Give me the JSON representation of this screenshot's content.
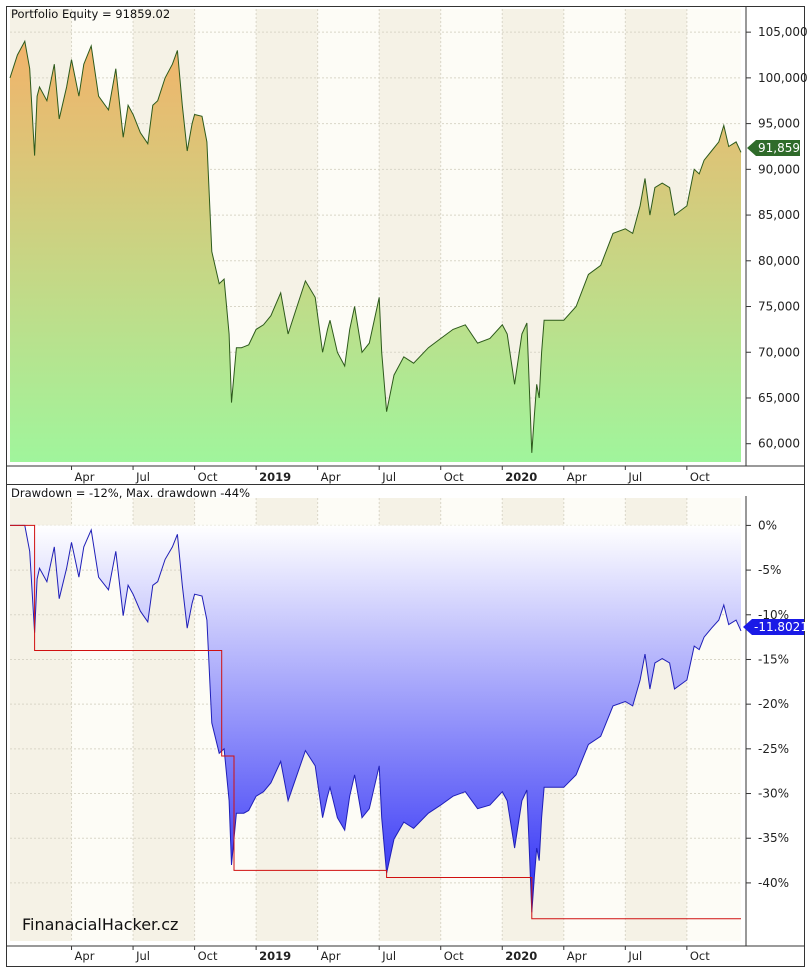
{
  "colors": {
    "equity_line": "#2d5a1b",
    "equity_fill_top": "#f2b36a",
    "equity_fill_bottom": "#a0f59c",
    "drawdown_line": "#1f1fb8",
    "drawdown_fill_top": "#ffffff",
    "drawdown_fill_bottom": "#2929f5",
    "max_drawdown_line": "#d01010",
    "equity_badge": "#2f6b2a",
    "drawdown_badge": "#1a1ae6"
  },
  "watermark": "FinanacialHacker.cz",
  "chart_data": [
    {
      "type": "area",
      "title": "Portfolio Equity = 91859.02",
      "badge": "91,859",
      "ylim": [
        58000,
        106000
      ],
      "y_ticks": [
        60000,
        65000,
        70000,
        75000,
        80000,
        85000,
        90000,
        95000,
        100000,
        105000
      ],
      "y_tick_labels": [
        "60,000",
        "65,000",
        "70,000",
        "75,000",
        "80,000",
        "85,000",
        "90,000",
        "95,000",
        "100,000",
        "105,000"
      ],
      "x_range": [
        2018.0,
        2020.97
      ],
      "x_ticks": [
        {
          "x": 2018.25,
          "label": "Apr",
          "bold": false
        },
        {
          "x": 2018.5,
          "label": "Jul",
          "bold": false
        },
        {
          "x": 2018.75,
          "label": "Oct",
          "bold": false
        },
        {
          "x": 2019.0,
          "label": "2019",
          "bold": true
        },
        {
          "x": 2019.25,
          "label": "Apr",
          "bold": false
        },
        {
          "x": 2019.5,
          "label": "Jul",
          "bold": false
        },
        {
          "x": 2019.75,
          "label": "Oct",
          "bold": false
        },
        {
          "x": 2020.0,
          "label": "2020",
          "bold": true
        },
        {
          "x": 2020.25,
          "label": "Apr",
          "bold": false
        },
        {
          "x": 2020.5,
          "label": "Jul",
          "bold": false
        },
        {
          "x": 2020.75,
          "label": "Oct",
          "bold": false
        }
      ],
      "series": [
        {
          "x": [
            2018.0,
            2018.03,
            2018.06,
            2018.08,
            2018.1,
            2018.11,
            2018.12,
            2018.15,
            2018.18,
            2018.2,
            2018.23,
            2018.25,
            2018.28,
            2018.3,
            2018.33,
            2018.36,
            2018.4,
            2018.43,
            2018.46,
            2018.48,
            2018.5,
            2018.53,
            2018.56,
            2018.58,
            2018.6,
            2018.63,
            2018.66,
            2018.68,
            2018.7,
            2018.72,
            2018.74,
            2018.75,
            2018.78,
            2018.8,
            2018.82,
            2018.85,
            2018.87,
            2018.89,
            2018.9,
            2018.92,
            2018.94,
            2018.95,
            2018.97,
            2019.0,
            2019.03,
            2019.06,
            2019.1,
            2019.13,
            2019.16,
            2019.2,
            2019.24,
            2019.27,
            2019.29,
            2019.3,
            2019.33,
            2019.36,
            2019.38,
            2019.4,
            2019.43,
            2019.46,
            2019.5,
            2019.51,
            2019.53,
            2019.56,
            2019.6,
            2019.64,
            2019.7,
            2019.75,
            2019.8,
            2019.85,
            2019.9,
            2019.95,
            2020.0,
            2020.02,
            2020.05,
            2020.08,
            2020.1,
            2020.12,
            2020.13,
            2020.14,
            2020.15,
            2020.16,
            2020.17,
            2020.18,
            2020.2,
            2020.25,
            2020.3,
            2020.35,
            2020.4,
            2020.45,
            2020.5,
            2020.53,
            2020.56,
            2020.58,
            2020.6,
            2020.62,
            2020.65,
            2020.68,
            2020.7,
            2020.75,
            2020.78,
            2020.8,
            2020.82,
            2020.85,
            2020.88,
            2020.9,
            2020.92,
            2020.95,
            2020.97
          ],
          "y": [
            100000,
            102500,
            104000,
            101000,
            91500,
            98000,
            99000,
            97500,
            101500,
            95500,
            99000,
            102000,
            98000,
            101500,
            103500,
            98000,
            96500,
            101000,
            93500,
            97000,
            96000,
            94000,
            92800,
            97000,
            97500,
            100000,
            101500,
            103000,
            97000,
            92000,
            95000,
            96000,
            95800,
            93000,
            81000,
            77500,
            78000,
            72000,
            64500,
            70500,
            70500,
            70600,
            70800,
            72500,
            73000,
            74000,
            76500,
            72000,
            74500,
            77800,
            76000,
            70000,
            72500,
            73500,
            70000,
            68500,
            72500,
            75000,
            70000,
            71000,
            76000,
            70000,
            63500,
            67500,
            69500,
            68800,
            70500,
            71500,
            72500,
            73000,
            71000,
            71500,
            73000,
            72000,
            66500,
            72000,
            73200,
            59000,
            63000,
            66500,
            65000,
            70000,
            73500,
            73500,
            73500,
            73500,
            75000,
            78500,
            79500,
            83000,
            83500,
            83000,
            86000,
            89000,
            85000,
            88000,
            88500,
            88000,
            85000,
            86000,
            90000,
            89500,
            91000,
            92000,
            93000,
            94800,
            92500,
            93000,
            91859
          ]
        }
      ]
    },
    {
      "type": "area",
      "title": "Drawdown = -12%, Max. drawdown -44%",
      "badge": "-11.8021",
      "ylim": [
        -46.5,
        1.5
      ],
      "y_ticks": [
        0,
        -5,
        -10,
        -15,
        -20,
        -25,
        -30,
        -35,
        -40
      ],
      "y_tick_labels": [
        "0%",
        "-5%",
        "-10%",
        "-15%",
        "-20%",
        "-25%",
        "-30%",
        "-35%",
        "-40%"
      ],
      "x_range": [
        2018.0,
        2020.97
      ],
      "x_ticks": [
        {
          "x": 2018.25,
          "label": "Apr",
          "bold": false
        },
        {
          "x": 2018.5,
          "label": "Jul",
          "bold": false
        },
        {
          "x": 2018.75,
          "label": "Oct",
          "bold": false
        },
        {
          "x": 2019.0,
          "label": "2019",
          "bold": true
        },
        {
          "x": 2019.25,
          "label": "Apr",
          "bold": false
        },
        {
          "x": 2019.5,
          "label": "Jul",
          "bold": false
        },
        {
          "x": 2019.75,
          "label": "Oct",
          "bold": false
        },
        {
          "x": 2020.0,
          "label": "2020",
          "bold": true
        },
        {
          "x": 2020.25,
          "label": "Apr",
          "bold": false
        },
        {
          "x": 2020.5,
          "label": "Jul",
          "bold": false
        },
        {
          "x": 2020.75,
          "label": "Oct",
          "bold": false
        }
      ],
      "series": [
        {
          "x": [
            2018.0,
            2018.06,
            2018.08,
            2018.1,
            2018.11,
            2018.12,
            2018.15,
            2018.18,
            2018.2,
            2018.23,
            2018.25,
            2018.28,
            2018.3,
            2018.33,
            2018.36,
            2018.4,
            2018.43,
            2018.46,
            2018.48,
            2018.5,
            2018.53,
            2018.56,
            2018.58,
            2018.6,
            2018.63,
            2018.66,
            2018.68,
            2018.7,
            2018.72,
            2018.74,
            2018.75,
            2018.78,
            2018.8,
            2018.82,
            2018.85,
            2018.87,
            2018.89,
            2018.9,
            2018.92,
            2018.94,
            2018.95,
            2018.97,
            2019.0,
            2019.03,
            2019.06,
            2019.1,
            2019.13,
            2019.16,
            2019.2,
            2019.24,
            2019.27,
            2019.29,
            2019.3,
            2019.33,
            2019.36,
            2019.38,
            2019.4,
            2019.43,
            2019.46,
            2019.5,
            2019.51,
            2019.53,
            2019.56,
            2019.6,
            2019.64,
            2019.7,
            2019.75,
            2019.8,
            2019.85,
            2019.9,
            2019.95,
            2020.0,
            2020.02,
            2020.05,
            2020.08,
            2020.1,
            2020.12,
            2020.13,
            2020.14,
            2020.15,
            2020.16,
            2020.17,
            2020.18,
            2020.2,
            2020.25,
            2020.3,
            2020.35,
            2020.4,
            2020.45,
            2020.5,
            2020.53,
            2020.56,
            2020.58,
            2020.6,
            2020.62,
            2020.65,
            2020.68,
            2020.7,
            2020.75,
            2020.78,
            2020.8,
            2020.82,
            2020.85,
            2020.88,
            2020.9,
            2020.92,
            2020.95,
            2020.97
          ],
          "y": [
            0,
            0,
            -2.9,
            -12.0,
            -6.0,
            -4.8,
            -6.3,
            -2.4,
            -8.2,
            -4.8,
            -1.9,
            -5.8,
            -2.4,
            -0.5,
            -5.8,
            -7.2,
            -2.9,
            -10.1,
            -6.7,
            -7.7,
            -9.6,
            -10.8,
            -6.7,
            -6.3,
            -3.8,
            -2.4,
            -1.0,
            -6.7,
            -11.5,
            -8.7,
            -7.7,
            -7.9,
            -10.6,
            -22.1,
            -25.5,
            -25.0,
            -30.8,
            -38.0,
            -32.2,
            -32.2,
            -32.2,
            -31.9,
            -30.3,
            -29.8,
            -28.8,
            -26.4,
            -30.8,
            -28.4,
            -25.2,
            -26.9,
            -32.7,
            -30.3,
            -29.3,
            -32.7,
            -34.1,
            -30.3,
            -27.9,
            -32.7,
            -31.7,
            -26.9,
            -32.7,
            -38.9,
            -35.1,
            -33.2,
            -33.9,
            -32.2,
            -31.3,
            -30.3,
            -29.8,
            -31.7,
            -31.3,
            -29.8,
            -30.8,
            -36.1,
            -30.8,
            -29.6,
            -43.3,
            -39.4,
            -36.1,
            -37.5,
            -32.7,
            -29.3,
            -29.3,
            -29.3,
            -29.3,
            -27.9,
            -24.5,
            -23.6,
            -20.2,
            -19.7,
            -20.2,
            -17.3,
            -14.4,
            -18.3,
            -15.4,
            -14.9,
            -15.4,
            -18.3,
            -17.3,
            -13.5,
            -13.9,
            -12.5,
            -11.5,
            -10.6,
            -8.9,
            -11.1,
            -10.6,
            -11.8
          ]
        },
        {
          "name": "",
          "x": [
            2018.0,
            2018.1,
            2018.1,
            2018.86,
            2018.86,
            2018.91,
            2018.91,
            2019.53,
            2019.53,
            2020.12,
            2020.12,
            2020.97
          ],
          "y": [
            0,
            0,
            -14.0,
            -14.0,
            -25.8,
            -25.8,
            -38.6,
            -38.6,
            -39.4,
            -39.4,
            -44.0,
            -44.0
          ]
        }
      ]
    }
  ]
}
